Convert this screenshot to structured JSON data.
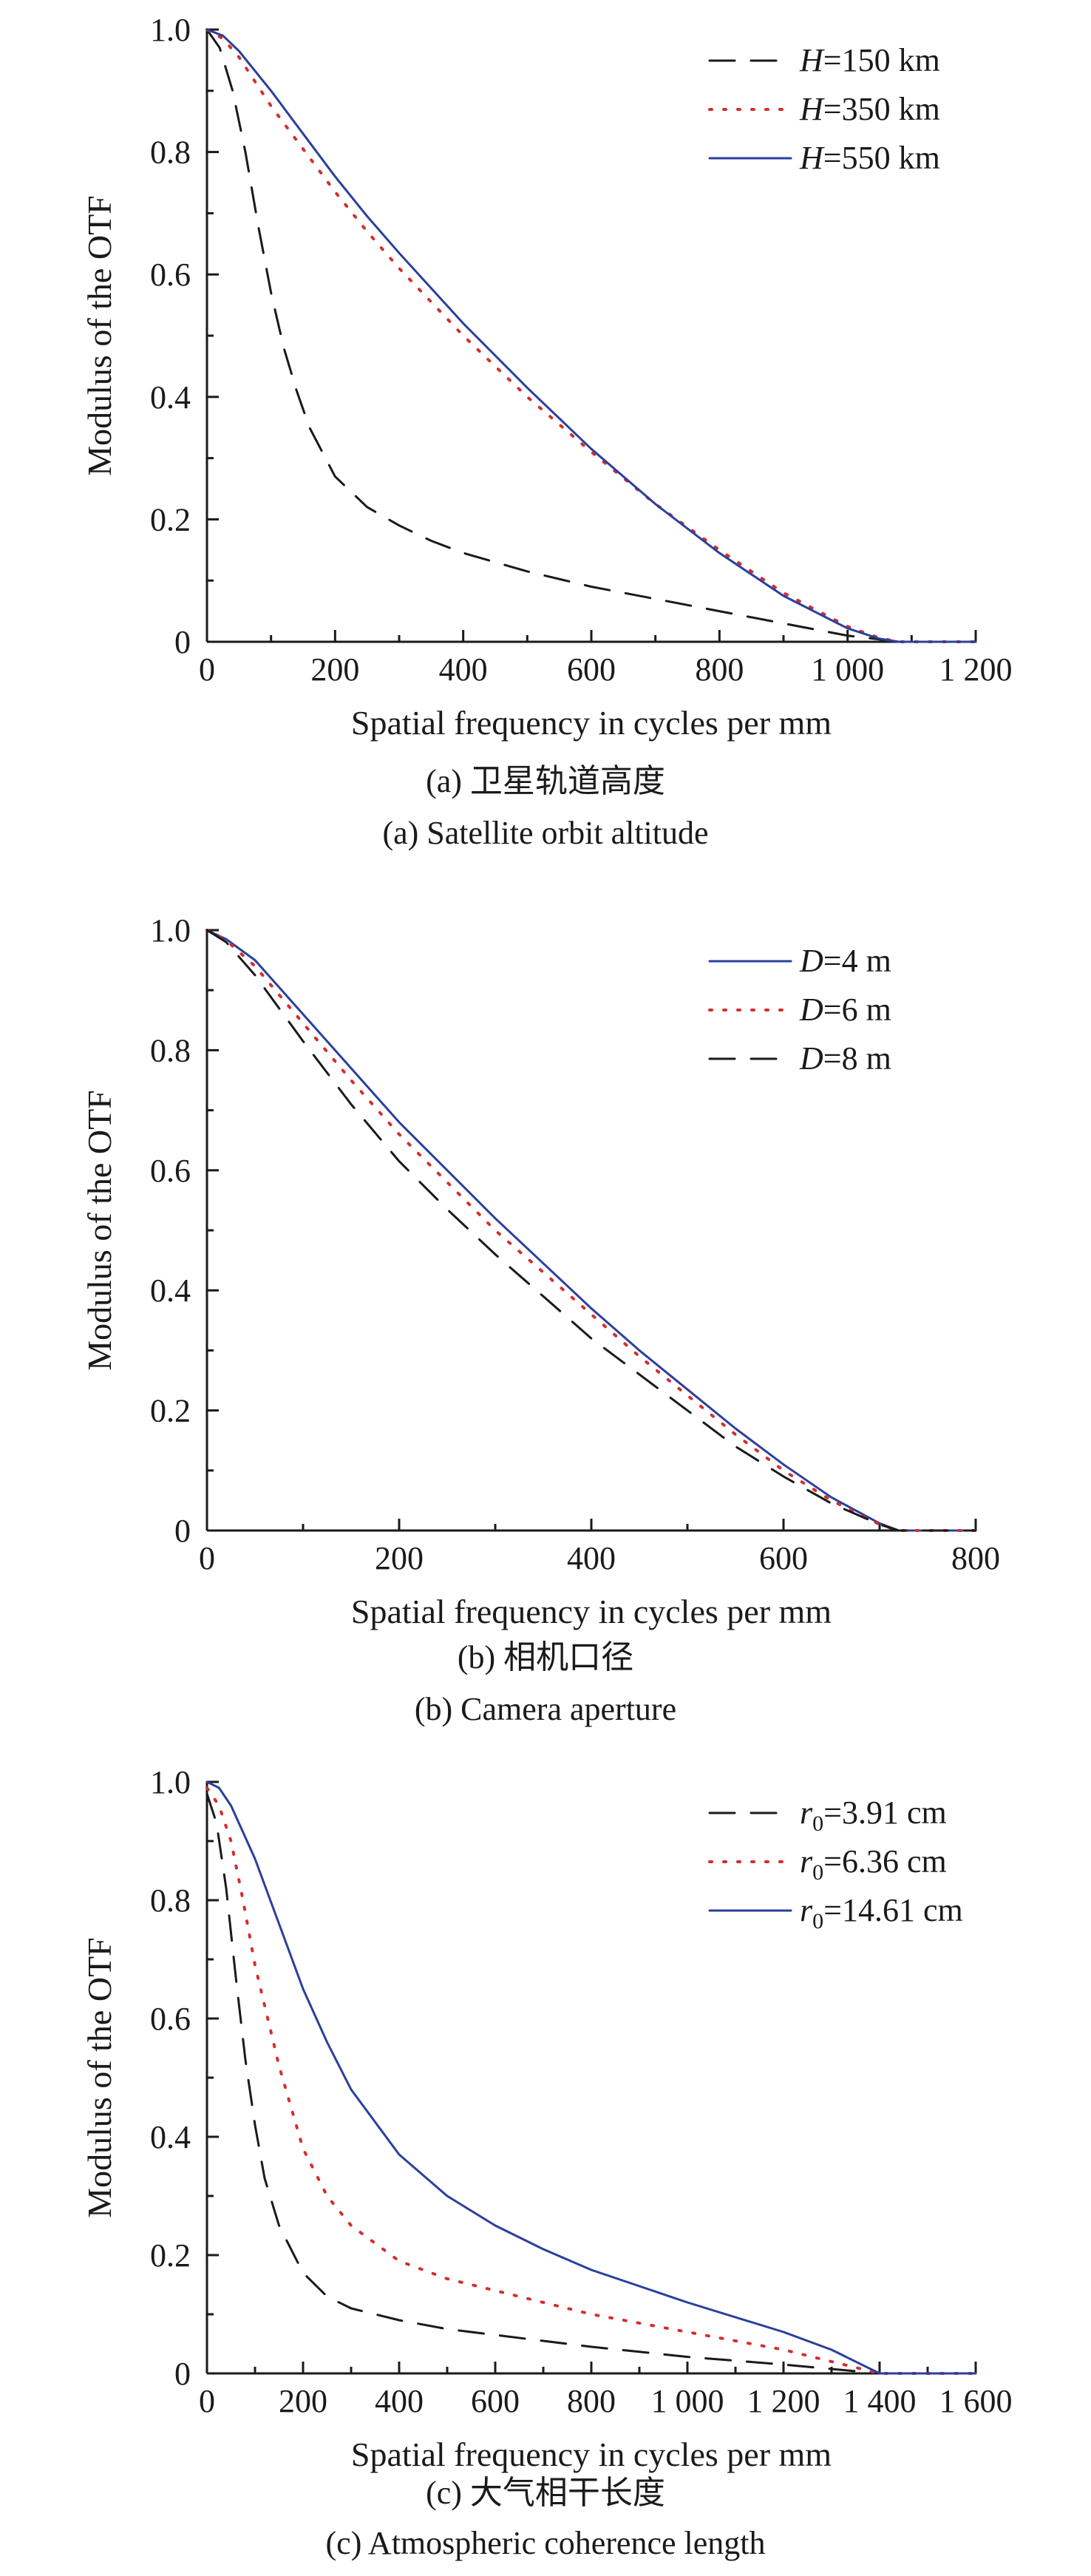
{
  "chart_data": [
    {
      "type": "line",
      "title": "",
      "xlabel": "Spatial frequency in cycles per mm",
      "ylabel": "Modulus of the OTF",
      "xlim": [
        0,
        1200
      ],
      "ylim": [
        0,
        1.0
      ],
      "xticks": [
        0,
        200,
        400,
        600,
        800,
        1000,
        1200
      ],
      "xtick_labels": [
        "0",
        "200",
        "400",
        "600",
        "800",
        "1 000",
        "1 200"
      ],
      "yticks": [
        0,
        0.2,
        0.4,
        0.6,
        0.8,
        1.0
      ],
      "ytick_labels": [
        "0",
        "0.2",
        "0.4",
        "0.6",
        "0.8",
        "1.0"
      ],
      "legend_position": "top-right",
      "caption_cn": "(a) 卫星轨道高度",
      "caption_en": "(a) Satellite orbit altitude",
      "series": [
        {
          "name": "H=150 km",
          "name_var": "H",
          "name_sub": "",
          "name_rest": "=150 km",
          "color": "#1a1a1a",
          "style": "dashed",
          "x": [
            0,
            20,
            40,
            60,
            80,
            100,
            120,
            140,
            160,
            200,
            250,
            300,
            350,
            400,
            500,
            600,
            700,
            800,
            900,
            1000,
            1050,
            1080,
            1200
          ],
          "y": [
            1.0,
            0.97,
            0.9,
            0.8,
            0.68,
            0.57,
            0.48,
            0.41,
            0.35,
            0.27,
            0.22,
            0.19,
            0.165,
            0.145,
            0.115,
            0.09,
            0.07,
            0.05,
            0.03,
            0.01,
            0.004,
            0.0,
            0.0
          ]
        },
        {
          "name": "H=350 km",
          "name_var": "H",
          "name_sub": "",
          "name_rest": "=350 km",
          "color": "#d32f2f",
          "style": "dotted",
          "x": [
            0,
            25,
            50,
            100,
            150,
            200,
            250,
            300,
            400,
            500,
            600,
            700,
            800,
            900,
            1000,
            1050,
            1080,
            1200
          ],
          "y": [
            1.0,
            0.985,
            0.955,
            0.875,
            0.805,
            0.735,
            0.67,
            0.61,
            0.5,
            0.4,
            0.31,
            0.225,
            0.15,
            0.08,
            0.025,
            0.006,
            0.0,
            0.0
          ]
        },
        {
          "name": "H=550 km",
          "name_var": "H",
          "name_sub": "",
          "name_rest": "=550 km",
          "color": "#2b3f9c",
          "style": "solid",
          "x": [
            0,
            25,
            50,
            100,
            150,
            200,
            250,
            300,
            400,
            500,
            600,
            700,
            800,
            900,
            1000,
            1050,
            1080,
            1200
          ],
          "y": [
            1.0,
            0.99,
            0.965,
            0.9,
            0.83,
            0.76,
            0.695,
            0.635,
            0.52,
            0.415,
            0.315,
            0.225,
            0.145,
            0.075,
            0.022,
            0.005,
            0.0,
            0.0
          ]
        }
      ]
    },
    {
      "type": "line",
      "title": "",
      "xlabel": "Spatial frequency in cycles per mm",
      "ylabel": "Modulus of the OTF",
      "xlim": [
        0,
        800
      ],
      "ylim": [
        0,
        1.0
      ],
      "xticks": [
        0,
        200,
        400,
        600,
        800
      ],
      "xtick_labels": [
        "0",
        "200",
        "400",
        "600",
        "800"
      ],
      "yticks": [
        0,
        0.2,
        0.4,
        0.6,
        0.8,
        1.0
      ],
      "ytick_labels": [
        "0",
        "0.2",
        "0.4",
        "0.6",
        "0.8",
        "1.0"
      ],
      "legend_position": "top-right",
      "caption_cn": "(b) 相机口径",
      "caption_en": "(b) Camera aperture",
      "series": [
        {
          "name": "D=4 m",
          "name_var": "D",
          "name_sub": "",
          "name_rest": "=4 m",
          "color": "#2b3f9c",
          "style": "solid",
          "x": [
            0,
            20,
            50,
            100,
            150,
            200,
            250,
            300,
            350,
            400,
            450,
            500,
            550,
            600,
            650,
            700,
            720,
            800
          ],
          "y": [
            1.0,
            0.985,
            0.95,
            0.86,
            0.77,
            0.68,
            0.6,
            0.52,
            0.445,
            0.37,
            0.3,
            0.235,
            0.17,
            0.11,
            0.055,
            0.012,
            0.0,
            0.0
          ]
        },
        {
          "name": "D=6 m",
          "name_var": "D",
          "name_sub": "",
          "name_rest": "=6 m",
          "color": "#d32f2f",
          "style": "dotted",
          "x": [
            0,
            20,
            50,
            100,
            150,
            200,
            250,
            300,
            350,
            400,
            450,
            500,
            550,
            600,
            650,
            700,
            720,
            800
          ],
          "y": [
            1.0,
            0.983,
            0.94,
            0.845,
            0.75,
            0.66,
            0.58,
            0.5,
            0.43,
            0.36,
            0.29,
            0.225,
            0.16,
            0.1,
            0.05,
            0.01,
            0.0,
            0.0
          ]
        },
        {
          "name": "D=8 m",
          "name_var": "D",
          "name_sub": "",
          "name_rest": "=8 m",
          "color": "#1a1a1a",
          "style": "dashed",
          "x": [
            0,
            20,
            50,
            100,
            150,
            200,
            250,
            300,
            350,
            400,
            450,
            500,
            550,
            600,
            650,
            700,
            720,
            800
          ],
          "y": [
            1.0,
            0.98,
            0.925,
            0.815,
            0.71,
            0.615,
            0.535,
            0.46,
            0.39,
            0.32,
            0.26,
            0.2,
            0.14,
            0.09,
            0.045,
            0.01,
            0.0,
            0.0
          ]
        }
      ]
    },
    {
      "type": "line",
      "title": "",
      "xlabel": "Spatial frequency in cycles per mm",
      "ylabel": "Modulus of the OTF",
      "xlim": [
        0,
        1600
      ],
      "ylim": [
        0,
        1.0
      ],
      "xticks": [
        0,
        200,
        400,
        600,
        800,
        1000,
        1200,
        1400,
        1600
      ],
      "xtick_labels": [
        "0",
        "200",
        "400",
        "600",
        "800",
        "1 000",
        "1 200",
        "1 400",
        "1 600"
      ],
      "yticks": [
        0,
        0.2,
        0.4,
        0.6,
        0.8,
        1.0
      ],
      "ytick_labels": [
        "0",
        "0.2",
        "0.4",
        "0.6",
        "0.8",
        "1.0"
      ],
      "legend_position": "top-right",
      "caption_cn": "(c) 大气相干长度",
      "caption_en": "(c) Atmospheric coherence length",
      "series": [
        {
          "name": "r0=3.91 cm",
          "name_var": "r",
          "name_sub": "0",
          "name_rest": "=3.91 cm",
          "color": "#1a1a1a",
          "style": "dashed",
          "x": [
            0,
            20,
            40,
            60,
            80,
            100,
            120,
            150,
            200,
            250,
            300,
            400,
            500,
            600,
            800,
            1000,
            1200,
            1400,
            1600
          ],
          "y": [
            0.98,
            0.93,
            0.82,
            0.67,
            0.53,
            0.42,
            0.33,
            0.25,
            0.17,
            0.13,
            0.11,
            0.09,
            0.075,
            0.065,
            0.045,
            0.028,
            0.015,
            0.0,
            0.0
          ]
        },
        {
          "name": "r0=6.36 cm",
          "name_var": "r",
          "name_sub": "0",
          "name_rest": "=6.36 cm",
          "color": "#d32f2f",
          "style": "dotted",
          "x": [
            0,
            25,
            50,
            75,
            100,
            150,
            200,
            250,
            300,
            400,
            500,
            600,
            800,
            1000,
            1200,
            1350,
            1400,
            1600
          ],
          "y": [
            0.99,
            0.96,
            0.9,
            0.8,
            0.69,
            0.52,
            0.38,
            0.3,
            0.25,
            0.19,
            0.16,
            0.14,
            0.1,
            0.07,
            0.04,
            0.01,
            0.0,
            0.0
          ]
        },
        {
          "name": "r0=14.61 cm",
          "name_var": "r",
          "name_sub": "0",
          "name_rest": "=14.61 cm",
          "color": "#2b3f9c",
          "style": "solid",
          "x": [
            0,
            25,
            50,
            100,
            150,
            200,
            250,
            300,
            400,
            500,
            600,
            700,
            800,
            1000,
            1200,
            1300,
            1400,
            1600
          ],
          "y": [
            1.0,
            0.99,
            0.96,
            0.87,
            0.76,
            0.65,
            0.56,
            0.48,
            0.37,
            0.3,
            0.25,
            0.21,
            0.175,
            0.12,
            0.07,
            0.04,
            0.0,
            0.0
          ]
        }
      ]
    }
  ]
}
